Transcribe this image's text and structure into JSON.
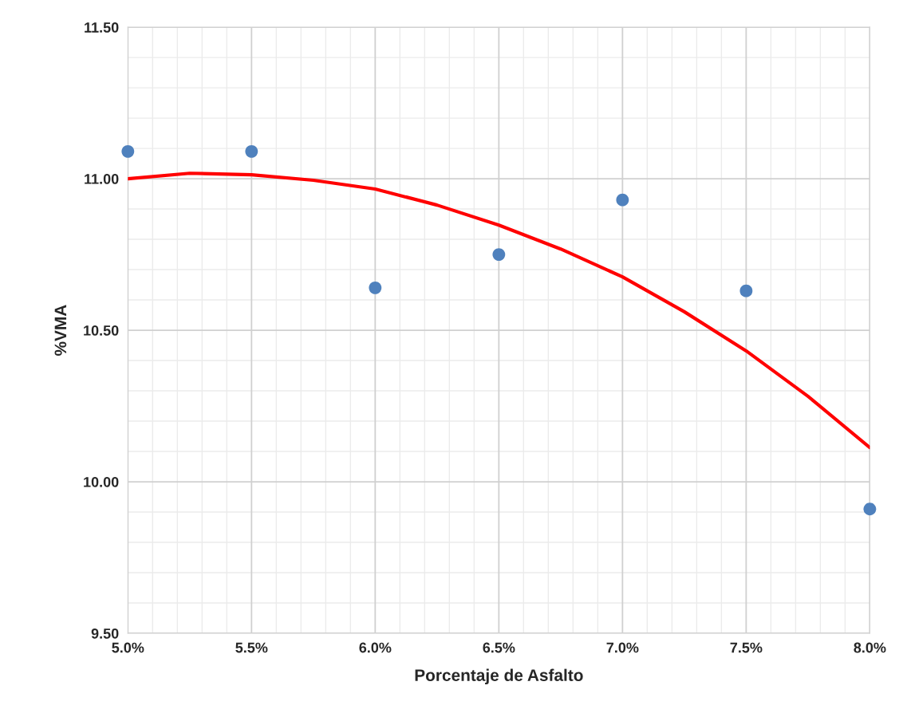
{
  "chart_data": {
    "type": "scatter",
    "xlabel": "Porcentaje de Asfalto",
    "ylabel": "%VMA",
    "series": [
      {
        "color": "#4f81bd",
        "marker": "circle",
        "x": [
          5.0,
          5.5,
          6.0,
          6.5,
          7.0,
          7.5,
          8.0
        ],
        "values": [
          11.09,
          11.09,
          10.64,
          10.75,
          10.93,
          10.63,
          9.91
        ]
      },
      {
        "type": "line",
        "color": "#ff0000",
        "marker": "none",
        "line_style": "solid",
        "x": [
          5.0,
          5.25,
          5.5,
          5.75,
          6.0,
          6.25,
          6.5,
          6.75,
          7.0,
          7.25,
          7.5,
          7.75,
          8.0
        ],
        "values": [
          11.0,
          11.018,
          11.013,
          10.995,
          10.966,
          10.913,
          10.847,
          10.768,
          10.676,
          10.561,
          10.432,
          10.282,
          10.113
        ]
      }
    ],
    "xlim": [
      5.0,
      8.0
    ],
    "xticks": [
      {
        "value": 5.0,
        "label": "5.0%"
      },
      {
        "value": 5.5,
        "label": "5.5%"
      },
      {
        "value": 6.0,
        "label": "6.0%"
      },
      {
        "value": 6.5,
        "label": "6.5%"
      },
      {
        "value": 7.0,
        "label": "7.0%"
      },
      {
        "value": 7.5,
        "label": "7.5%"
      },
      {
        "value": 8.0,
        "label": "8.0%"
      }
    ],
    "ylim": [
      9.5,
      11.5
    ],
    "yticks": [
      {
        "value": 9.5,
        "label": "9.50"
      },
      {
        "value": 10.0,
        "label": "10.00"
      },
      {
        "value": 10.5,
        "label": "10.50"
      },
      {
        "value": 11.0,
        "label": "11.00"
      },
      {
        "value": 11.5,
        "label": "11.50"
      }
    ],
    "grid": true
  }
}
